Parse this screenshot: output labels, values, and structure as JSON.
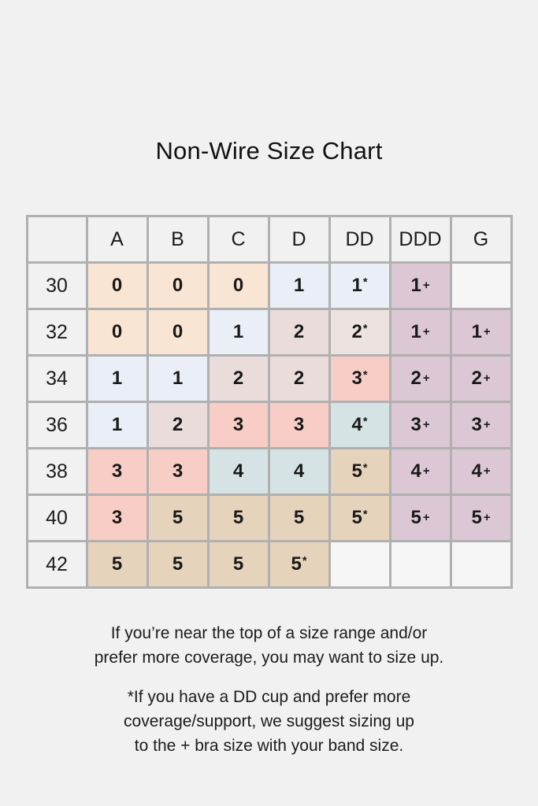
{
  "title": "Non-Wire Size Chart",
  "palette": {
    "peach": "#f8e5d3",
    "blue": "#e9eef7",
    "dust": "#e9dcdb",
    "dust_light": "#ece3e1",
    "pink": "#f7cdc6",
    "teal": "#d5e3e4",
    "tan": "#e6d3bc",
    "mauve": "#dcc7d4",
    "blank": "#f6f6f6",
    "grid": "#b0b0b0",
    "background": "#f1f1f1"
  },
  "chart_data": {
    "type": "table",
    "title": "Non-Wire Size Chart",
    "columns": [
      "",
      "A",
      "B",
      "C",
      "D",
      "DD",
      "DDD",
      "G"
    ],
    "rows": [
      {
        "band": "30",
        "cells": [
          {
            "v": "0",
            "s": "",
            "bg": "peach"
          },
          {
            "v": "0",
            "s": "",
            "bg": "peach"
          },
          {
            "v": "0",
            "s": "",
            "bg": "peach"
          },
          {
            "v": "1",
            "s": "",
            "bg": "blue"
          },
          {
            "v": "1",
            "s": "*",
            "bg": "blue"
          },
          {
            "v": "1",
            "s": "+",
            "bg": "mauve"
          },
          {
            "v": "",
            "s": "",
            "bg": "blank"
          }
        ]
      },
      {
        "band": "32",
        "cells": [
          {
            "v": "0",
            "s": "",
            "bg": "peach"
          },
          {
            "v": "0",
            "s": "",
            "bg": "peach"
          },
          {
            "v": "1",
            "s": "",
            "bg": "blue"
          },
          {
            "v": "2",
            "s": "",
            "bg": "dust"
          },
          {
            "v": "2",
            "s": "*",
            "bg": "dust_light"
          },
          {
            "v": "1",
            "s": "+",
            "bg": "mauve"
          },
          {
            "v": "1",
            "s": "+",
            "bg": "mauve"
          }
        ]
      },
      {
        "band": "34",
        "cells": [
          {
            "v": "1",
            "s": "",
            "bg": "blue"
          },
          {
            "v": "1",
            "s": "",
            "bg": "blue"
          },
          {
            "v": "2",
            "s": "",
            "bg": "dust"
          },
          {
            "v": "2",
            "s": "",
            "bg": "dust"
          },
          {
            "v": "3",
            "s": "*",
            "bg": "pink"
          },
          {
            "v": "2",
            "s": "+",
            "bg": "mauve"
          },
          {
            "v": "2",
            "s": "+",
            "bg": "mauve"
          }
        ]
      },
      {
        "band": "36",
        "cells": [
          {
            "v": "1",
            "s": "",
            "bg": "blue"
          },
          {
            "v": "2",
            "s": "",
            "bg": "dust"
          },
          {
            "v": "3",
            "s": "",
            "bg": "pink"
          },
          {
            "v": "3",
            "s": "",
            "bg": "pink"
          },
          {
            "v": "4",
            "s": "*",
            "bg": "teal"
          },
          {
            "v": "3",
            "s": "+",
            "bg": "mauve"
          },
          {
            "v": "3",
            "s": "+",
            "bg": "mauve"
          }
        ]
      },
      {
        "band": "38",
        "cells": [
          {
            "v": "3",
            "s": "",
            "bg": "pink"
          },
          {
            "v": "3",
            "s": "",
            "bg": "pink"
          },
          {
            "v": "4",
            "s": "",
            "bg": "teal"
          },
          {
            "v": "4",
            "s": "",
            "bg": "teal"
          },
          {
            "v": "5",
            "s": "*",
            "bg": "tan"
          },
          {
            "v": "4",
            "s": "+",
            "bg": "mauve"
          },
          {
            "v": "4",
            "s": "+",
            "bg": "mauve"
          }
        ]
      },
      {
        "band": "40",
        "cells": [
          {
            "v": "3",
            "s": "",
            "bg": "pink"
          },
          {
            "v": "5",
            "s": "",
            "bg": "tan"
          },
          {
            "v": "5",
            "s": "",
            "bg": "tan"
          },
          {
            "v": "5",
            "s": "",
            "bg": "tan"
          },
          {
            "v": "5",
            "s": "*",
            "bg": "tan"
          },
          {
            "v": "5",
            "s": "+",
            "bg": "mauve"
          },
          {
            "v": "5",
            "s": "+",
            "bg": "mauve"
          }
        ]
      },
      {
        "band": "42",
        "cells": [
          {
            "v": "5",
            "s": "",
            "bg": "tan"
          },
          {
            "v": "5",
            "s": "",
            "bg": "tan"
          },
          {
            "v": "5",
            "s": "",
            "bg": "tan"
          },
          {
            "v": "5",
            "s": "*",
            "bg": "tan"
          },
          {
            "v": "",
            "s": "",
            "bg": "blank"
          },
          {
            "v": "",
            "s": "",
            "bg": "blank"
          },
          {
            "v": "",
            "s": "",
            "bg": "blank"
          }
        ]
      }
    ]
  },
  "notes": [
    [
      "If you’re near the top of a size range and/or",
      "prefer more coverage, you may want to size up."
    ],
    [
      "*If you have a DD cup and prefer more",
      "coverage/support, we suggest sizing up",
      "to the + bra size with your band size."
    ]
  ]
}
